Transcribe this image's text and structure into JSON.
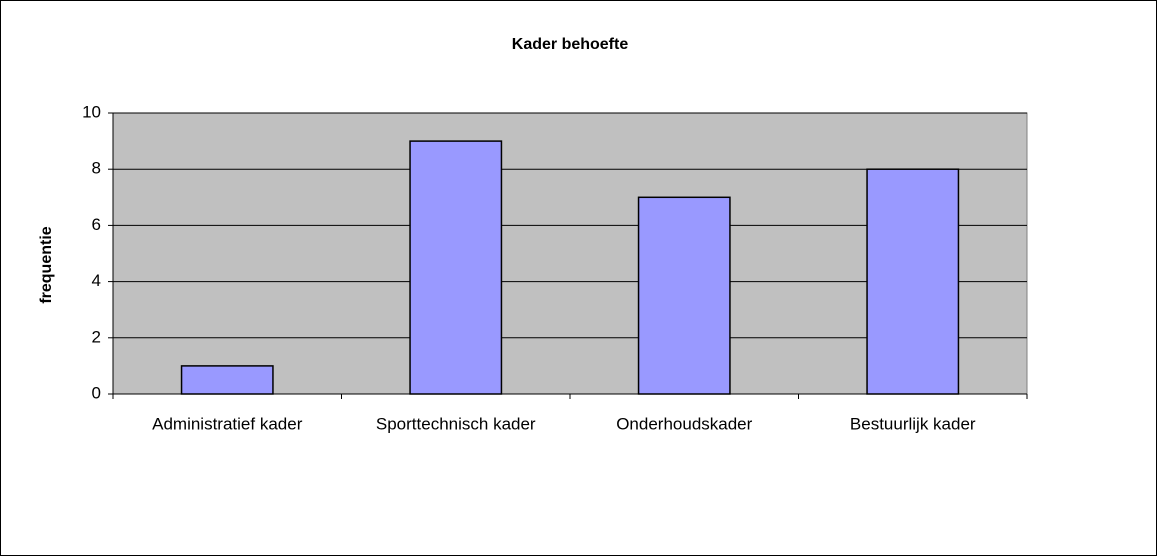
{
  "chart_data": {
    "type": "bar",
    "title": "Kader behoefte",
    "y_label": "frequentie",
    "categories": [
      "Administratief kader",
      "Sporttechnisch kader",
      "Onderhoudskader",
      "Bestuurlijk kader"
    ],
    "values": [
      1,
      9,
      7,
      8
    ],
    "color": "#9999ff",
    "ylim": [
      0,
      10
    ],
    "yticks": [
      0,
      2,
      4,
      6,
      8,
      10
    ],
    "grid": true
  }
}
